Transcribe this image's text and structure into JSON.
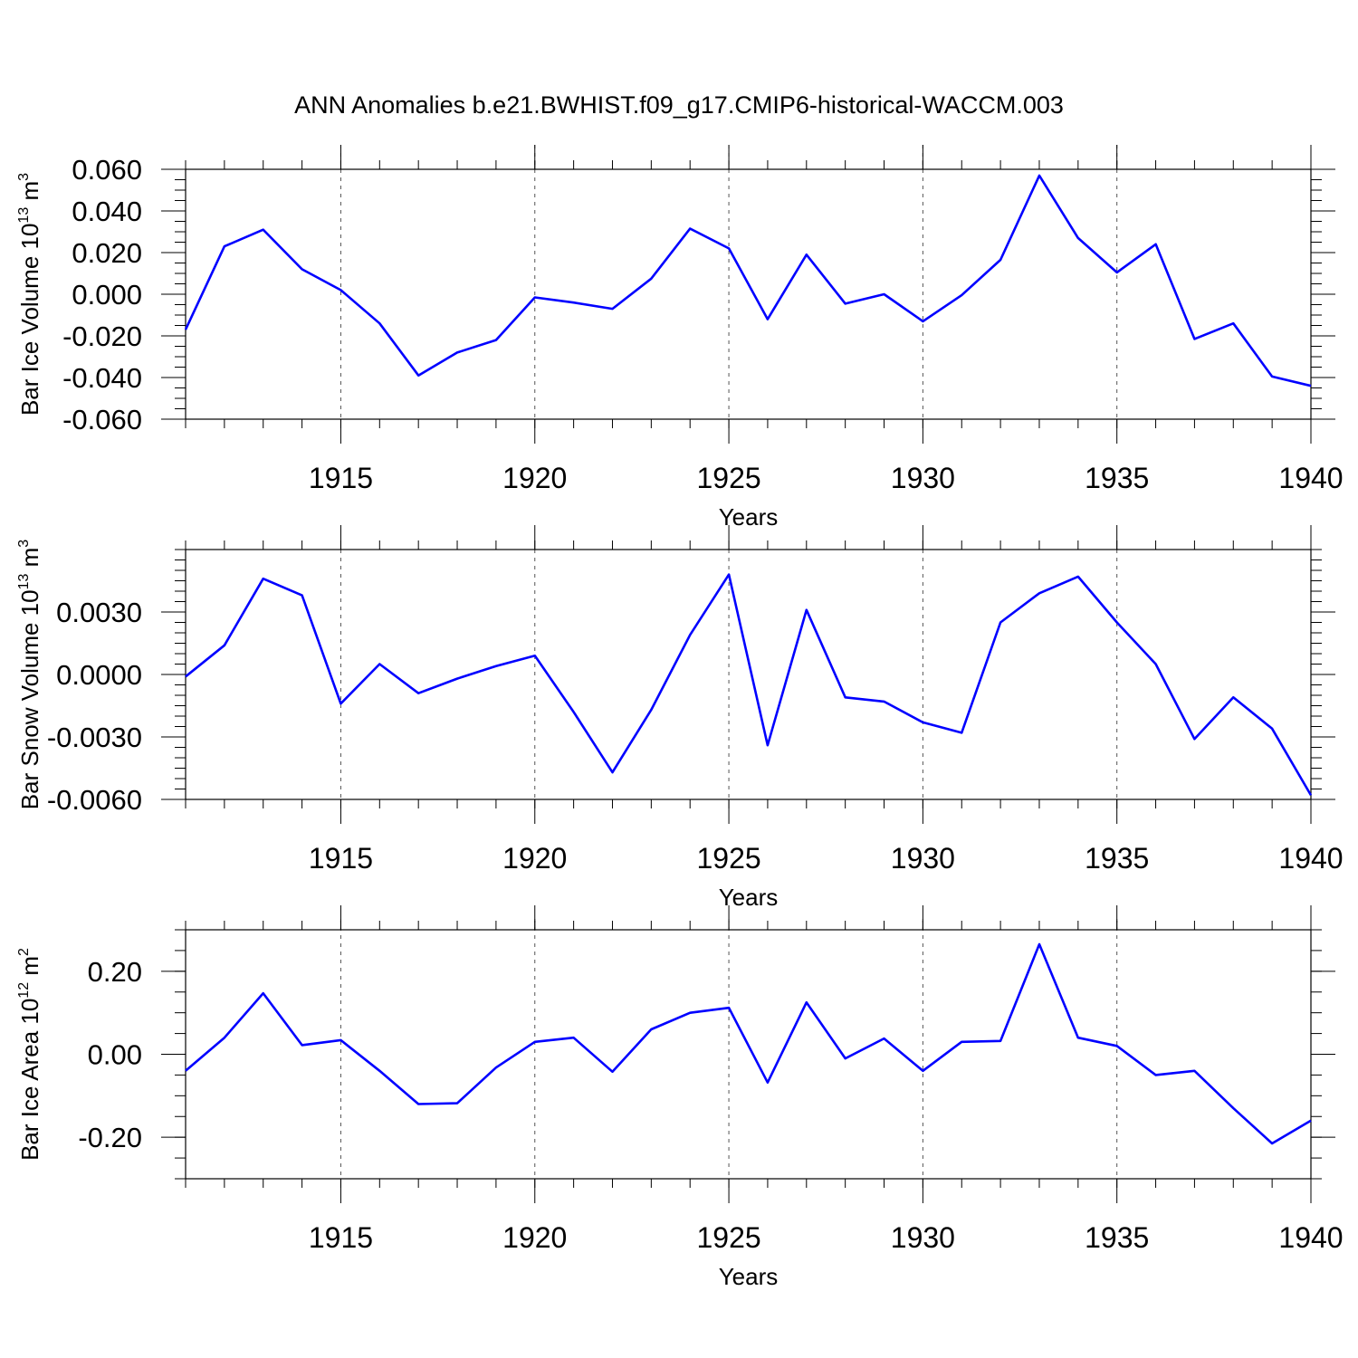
{
  "title": "ANN Anomalies b.e21.BWHIST.f09_g17.CMIP6-historical-WACCM.003",
  "line_color": "#0000ff",
  "chart_data": [
    {
      "type": "line",
      "ylabel_main": "Bar Ice Volume 10",
      "ylabel_exp": "13",
      "ylabel_unit": " m",
      "ylabel_unit_exp": "3",
      "xlabel": "Years",
      "xlim": [
        1911,
        1940
      ],
      "ylim": [
        -0.06,
        0.06
      ],
      "xticks": [
        1915,
        1920,
        1925,
        1930,
        1935,
        1940
      ],
      "xtick_labels": [
        "1915",
        "1920",
        "1925",
        "1930",
        "1935",
        "1940"
      ],
      "yticks": [
        -0.06,
        -0.04,
        -0.02,
        0.0,
        0.02,
        0.04,
        0.06
      ],
      "ytick_labels": [
        "-0.060",
        "-0.040",
        "-0.020",
        "0.000",
        "0.020",
        "0.040",
        "0.060"
      ],
      "x": [
        1911,
        1912,
        1913,
        1914,
        1915,
        1916,
        1917,
        1918,
        1919,
        1920,
        1921,
        1922,
        1923,
        1924,
        1925,
        1926,
        1927,
        1928,
        1929,
        1930,
        1931,
        1932,
        1933,
        1934,
        1935,
        1936,
        1937,
        1938,
        1939,
        1940
      ],
      "values": [
        -0.017,
        0.023,
        0.031,
        0.012,
        0.002,
        -0.014,
        -0.039,
        -0.028,
        -0.022,
        -0.0015,
        -0.004,
        -0.007,
        0.0075,
        0.0315,
        0.022,
        -0.012,
        0.019,
        -0.0045,
        0.0,
        -0.013,
        -0.0005,
        0.0165,
        0.057,
        0.027,
        0.0105,
        0.024,
        -0.0215,
        -0.014,
        -0.0395,
        -0.044
      ]
    },
    {
      "type": "line",
      "ylabel_main": "Bar Snow Volume 10",
      "ylabel_exp": "13",
      "ylabel_unit": " m",
      "ylabel_unit_exp": "3",
      "xlabel": "Years",
      "xlim": [
        1911,
        1940
      ],
      "ylim": [
        -0.006,
        0.006
      ],
      "xticks": [
        1915,
        1920,
        1925,
        1930,
        1935,
        1940
      ],
      "xtick_labels": [
        "1915",
        "1920",
        "1925",
        "1930",
        "1935",
        "1940"
      ],
      "yticks": [
        -0.006,
        -0.003,
        0.0,
        0.003
      ],
      "ytick_labels": [
        "-0.0060",
        "-0.0030",
        "0.0000",
        "0.0030"
      ],
      "x": [
        1911,
        1912,
        1913,
        1914,
        1915,
        1916,
        1917,
        1918,
        1919,
        1920,
        1921,
        1922,
        1923,
        1924,
        1925,
        1926,
        1927,
        1928,
        1929,
        1930,
        1931,
        1932,
        1933,
        1934,
        1935,
        1936,
        1937,
        1938,
        1939,
        1940
      ],
      "values": [
        -0.0001,
        0.0014,
        0.0046,
        0.0038,
        -0.0014,
        0.0005,
        -0.0009,
        -0.0002,
        0.0004,
        0.0009,
        -0.0018,
        -0.0047,
        -0.0017,
        0.0019,
        0.0048,
        -0.0034,
        0.0031,
        -0.0011,
        -0.0013,
        -0.0023,
        -0.0028,
        0.0025,
        0.0039,
        0.0047,
        0.0025,
        0.0005,
        -0.0031,
        -0.0011,
        -0.0026,
        -0.0058
      ]
    },
    {
      "type": "line",
      "ylabel_main": "Bar Ice Area 10",
      "ylabel_exp": "12",
      "ylabel_unit": " m",
      "ylabel_unit_exp": "2",
      "xlabel": "Years",
      "xlim": [
        1911,
        1940
      ],
      "ylim": [
        -0.3,
        0.3
      ],
      "xticks": [
        1915,
        1920,
        1925,
        1930,
        1935,
        1940
      ],
      "xtick_labels": [
        "1915",
        "1920",
        "1925",
        "1930",
        "1935",
        "1940"
      ],
      "yticks": [
        -0.2,
        0.0,
        0.2
      ],
      "ytick_labels": [
        "-0.20",
        "0.00",
        "0.20"
      ],
      "x": [
        1911,
        1912,
        1913,
        1914,
        1915,
        1916,
        1917,
        1918,
        1919,
        1920,
        1921,
        1922,
        1923,
        1924,
        1925,
        1926,
        1927,
        1928,
        1929,
        1930,
        1931,
        1932,
        1933,
        1934,
        1935,
        1936,
        1937,
        1938,
        1939,
        1940
      ],
      "values": [
        -0.04,
        0.04,
        0.147,
        0.022,
        0.034,
        -0.04,
        -0.12,
        -0.118,
        -0.032,
        0.03,
        0.04,
        -0.042,
        0.06,
        0.1,
        0.112,
        -0.068,
        0.125,
        -0.01,
        0.038,
        -0.04,
        0.03,
        0.032,
        0.265,
        0.04,
        0.02,
        -0.05,
        -0.04,
        -0.13,
        -0.215,
        -0.16
      ]
    }
  ]
}
